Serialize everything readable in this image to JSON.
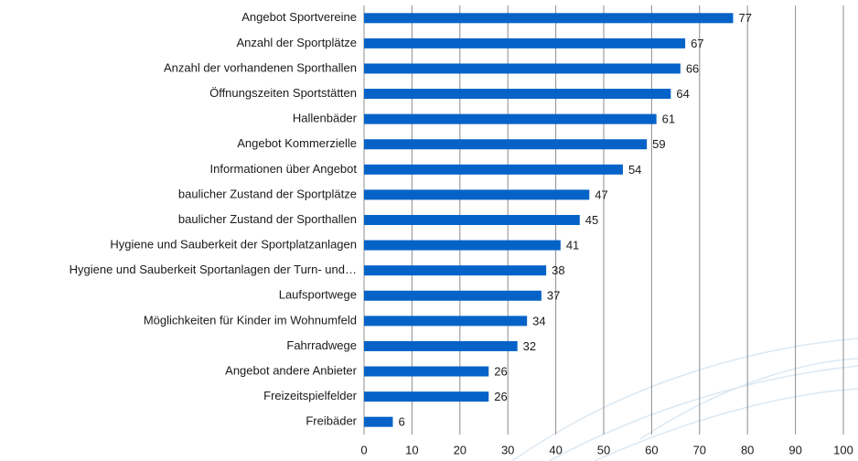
{
  "chart_data": {
    "type": "barh",
    "categories": [
      "Angebot Sportvereine",
      "Anzahl der  Sportplätze",
      "Anzahl der vorhandenen Sporthallen",
      "Öffnungszeiten Sportstätten",
      "Hallenbäder",
      "Angebot Kommerzielle",
      "Informationen über Angebot",
      "baulicher Zustand der Sportplätze",
      "baulicher Zustand der Sporthallen",
      "Hygiene und Sauberkeit der Sportplatzanlagen",
      "Hygiene und Sauberkeit Sportanlagen der Turn- und…",
      "Laufsportwege",
      "Möglichkeiten für Kinder im Wohnumfeld",
      "Fahrradwege",
      "Angebot andere Anbieter",
      "Freizeitspielfelder",
      "Freibäder"
    ],
    "values": [
      77,
      67,
      66,
      64,
      61,
      59,
      54,
      47,
      45,
      41,
      38,
      37,
      34,
      32,
      26,
      26,
      6
    ],
    "color": "#0563c8",
    "xlim": [
      0,
      100
    ],
    "xticks": [
      0,
      10,
      20,
      30,
      40,
      50,
      60,
      70,
      80,
      90,
      100
    ],
    "grid": true
  }
}
